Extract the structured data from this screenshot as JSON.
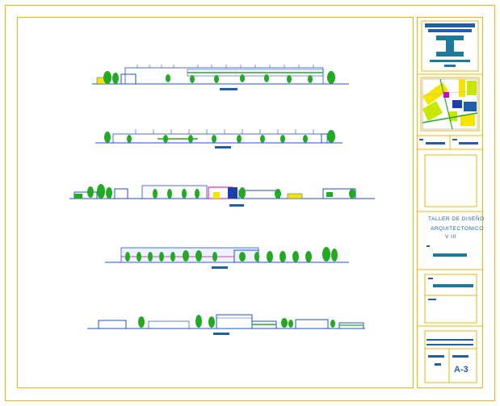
{
  "drawing": {
    "colors": {
      "border": "#f0b400",
      "line": "#1e4fd0",
      "tree": "#22aa22",
      "accent_yellow": "#f5e400",
      "accent_magenta": "#d000d0",
      "text_blue": "#1e5fa8"
    },
    "elevations": [
      {
        "name": "elevation-1"
      },
      {
        "name": "elevation-2"
      },
      {
        "name": "elevation-3"
      },
      {
        "name": "elevation-4"
      },
      {
        "name": "elevation-5"
      }
    ]
  },
  "title_block": {
    "course_line1": "TALLER DE DISEÑO",
    "course_line2": "ARQUITECTONICO",
    "course_line3": "V  III",
    "sheet_number": "A-3"
  }
}
